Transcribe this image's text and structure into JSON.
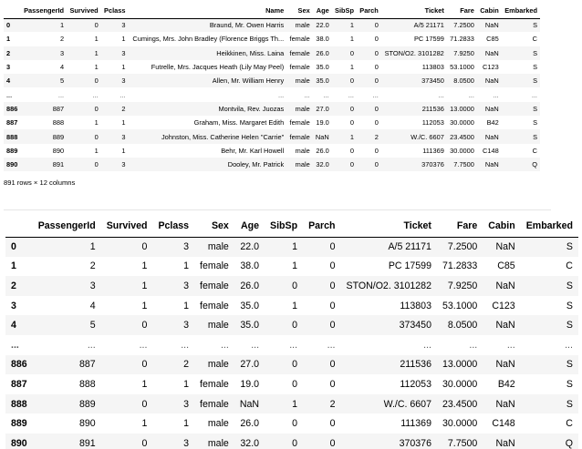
{
  "table_full": {
    "columns": [
      "PassengerId",
      "Survived",
      "Pclass",
      "Name",
      "Sex",
      "Age",
      "SibSp",
      "Parch",
      "Ticket",
      "Fare",
      "Cabin",
      "Embarked"
    ],
    "rows": [
      {
        "index": "0",
        "cells": [
          "1",
          "0",
          "3",
          "Braund, Mr. Owen Harris",
          "male",
          "22.0",
          "1",
          "0",
          "A/5 21171",
          "7.2500",
          "NaN",
          "S"
        ]
      },
      {
        "index": "1",
        "cells": [
          "2",
          "1",
          "1",
          "Cumings, Mrs. John Bradley (Florence Briggs Th...",
          "female",
          "38.0",
          "1",
          "0",
          "PC 17599",
          "71.2833",
          "C85",
          "C"
        ]
      },
      {
        "index": "2",
        "cells": [
          "3",
          "1",
          "3",
          "Heikkinen, Miss. Laina",
          "female",
          "26.0",
          "0",
          "0",
          "STON/O2. 3101282",
          "7.9250",
          "NaN",
          "S"
        ]
      },
      {
        "index": "3",
        "cells": [
          "4",
          "1",
          "1",
          "Futrelle, Mrs. Jacques Heath (Lily May Peel)",
          "female",
          "35.0",
          "1",
          "0",
          "113803",
          "53.1000",
          "C123",
          "S"
        ]
      },
      {
        "index": "4",
        "cells": [
          "5",
          "0",
          "3",
          "Allen, Mr. William Henry",
          "male",
          "35.0",
          "0",
          "0",
          "373450",
          "8.0500",
          "NaN",
          "S"
        ]
      },
      {
        "index": "...",
        "cells": [
          "...",
          "...",
          "...",
          "...",
          "...",
          "...",
          "...",
          "...",
          "...",
          "...",
          "...",
          "..."
        ]
      },
      {
        "index": "886",
        "cells": [
          "887",
          "0",
          "2",
          "Montvila, Rev. Juozas",
          "male",
          "27.0",
          "0",
          "0",
          "211536",
          "13.0000",
          "NaN",
          "S"
        ]
      },
      {
        "index": "887",
        "cells": [
          "888",
          "1",
          "1",
          "Graham, Miss. Margaret Edith",
          "female",
          "19.0",
          "0",
          "0",
          "112053",
          "30.0000",
          "B42",
          "S"
        ]
      },
      {
        "index": "888",
        "cells": [
          "889",
          "0",
          "3",
          "Johnston, Miss. Catherine Helen \"Carrie\"",
          "female",
          "NaN",
          "1",
          "2",
          "W./C. 6607",
          "23.4500",
          "NaN",
          "S"
        ]
      },
      {
        "index": "889",
        "cells": [
          "890",
          "1",
          "1",
          "Behr, Mr. Karl Howell",
          "male",
          "26.0",
          "0",
          "0",
          "111369",
          "30.0000",
          "C148",
          "C"
        ]
      },
      {
        "index": "890",
        "cells": [
          "891",
          "0",
          "3",
          "Dooley, Mr. Patrick",
          "male",
          "32.0",
          "0",
          "0",
          "370376",
          "7.7500",
          "NaN",
          "Q"
        ]
      }
    ],
    "shape_note": "891 rows × 12 columns"
  },
  "table_trimmed": {
    "columns": [
      "PassengerId",
      "Survived",
      "Pclass",
      "Sex",
      "Age",
      "SibSp",
      "Parch",
      "Ticket",
      "Fare",
      "Cabin",
      "Embarked"
    ],
    "rows": [
      {
        "index": "0",
        "cells": [
          "1",
          "0",
          "3",
          "male",
          "22.0",
          "1",
          "0",
          "A/5 21171",
          "7.2500",
          "NaN",
          "S"
        ]
      },
      {
        "index": "1",
        "cells": [
          "2",
          "1",
          "1",
          "female",
          "38.0",
          "1",
          "0",
          "PC 17599",
          "71.2833",
          "C85",
          "C"
        ]
      },
      {
        "index": "2",
        "cells": [
          "3",
          "1",
          "3",
          "female",
          "26.0",
          "0",
          "0",
          "STON/O2. 3101282",
          "7.9250",
          "NaN",
          "S"
        ]
      },
      {
        "index": "3",
        "cells": [
          "4",
          "1",
          "1",
          "female",
          "35.0",
          "1",
          "0",
          "113803",
          "53.1000",
          "C123",
          "S"
        ]
      },
      {
        "index": "4",
        "cells": [
          "5",
          "0",
          "3",
          "male",
          "35.0",
          "0",
          "0",
          "373450",
          "8.0500",
          "NaN",
          "S"
        ]
      },
      {
        "index": "...",
        "cells": [
          "...",
          "...",
          "...",
          "...",
          "...",
          "...",
          "...",
          "...",
          "...",
          "...",
          "..."
        ]
      },
      {
        "index": "886",
        "cells": [
          "887",
          "0",
          "2",
          "male",
          "27.0",
          "0",
          "0",
          "211536",
          "13.0000",
          "NaN",
          "S"
        ]
      },
      {
        "index": "887",
        "cells": [
          "888",
          "1",
          "1",
          "female",
          "19.0",
          "0",
          "0",
          "112053",
          "30.0000",
          "B42",
          "S"
        ]
      },
      {
        "index": "888",
        "cells": [
          "889",
          "0",
          "3",
          "female",
          "NaN",
          "1",
          "2",
          "W./C. 6607",
          "23.4500",
          "NaN",
          "S"
        ]
      },
      {
        "index": "889",
        "cells": [
          "890",
          "1",
          "1",
          "male",
          "26.0",
          "0",
          "0",
          "111369",
          "30.0000",
          "C148",
          "C"
        ]
      },
      {
        "index": "890",
        "cells": [
          "891",
          "0",
          "3",
          "male",
          "32.0",
          "0",
          "0",
          "370376",
          "7.7500",
          "NaN",
          "Q"
        ]
      }
    ]
  }
}
